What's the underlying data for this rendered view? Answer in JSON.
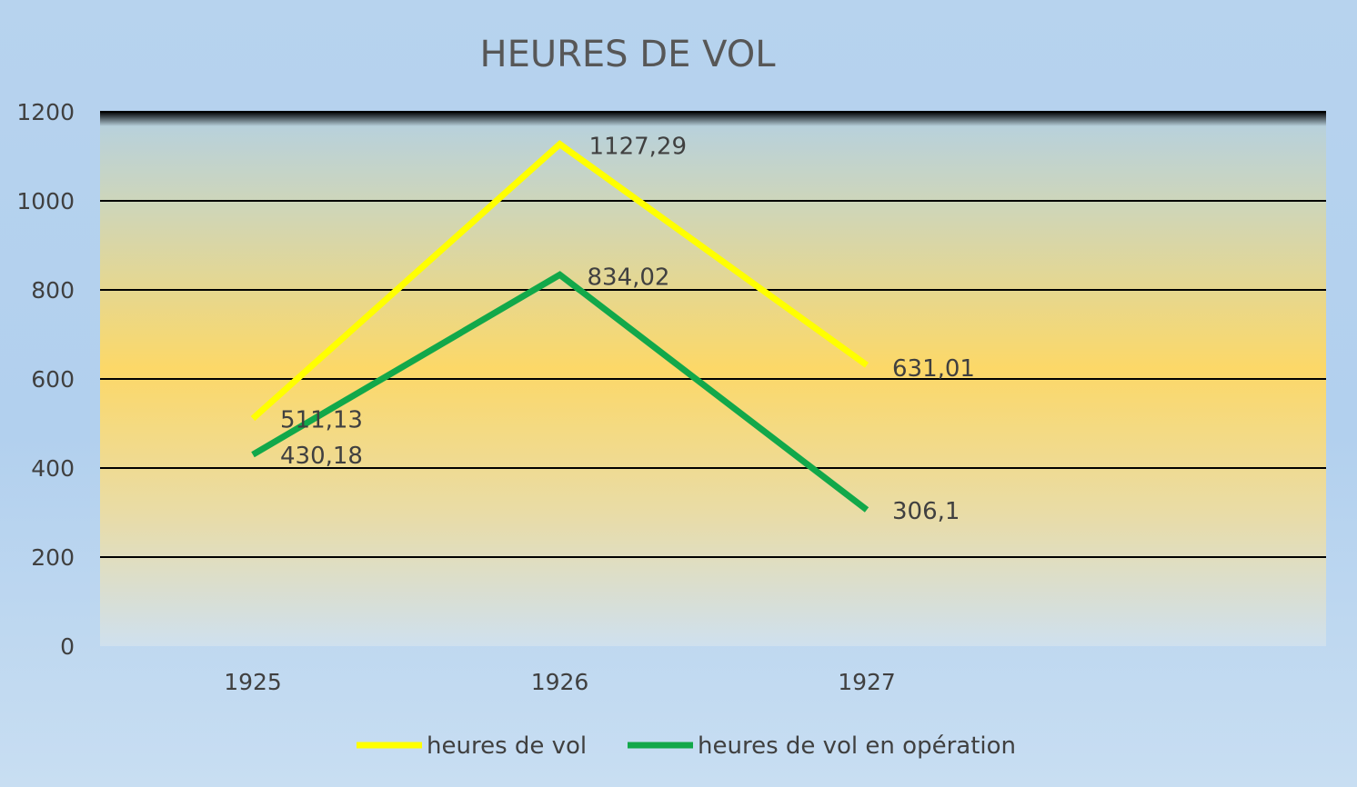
{
  "chart_data": {
    "type": "line",
    "title": "HEURES DE VOL",
    "categories": [
      "1925",
      "1926",
      "1927"
    ],
    "ylim": [
      0,
      1200
    ],
    "yticks": [
      0,
      200,
      400,
      600,
      800,
      1000,
      1200
    ],
    "grid": true,
    "legend_position": "bottom",
    "series": [
      {
        "name": "heures de vol",
        "color": "#ffff00",
        "values": [
          511.13,
          1127.29,
          631.01
        ],
        "labels": [
          "511,13",
          "1127,29",
          "631,01"
        ]
      },
      {
        "name": "heures de vol en opération",
        "color": "#12a84a",
        "values": [
          430.18,
          834.02,
          306.1
        ],
        "labels": [
          "430,18",
          "834,02",
          "306,1"
        ]
      }
    ]
  }
}
